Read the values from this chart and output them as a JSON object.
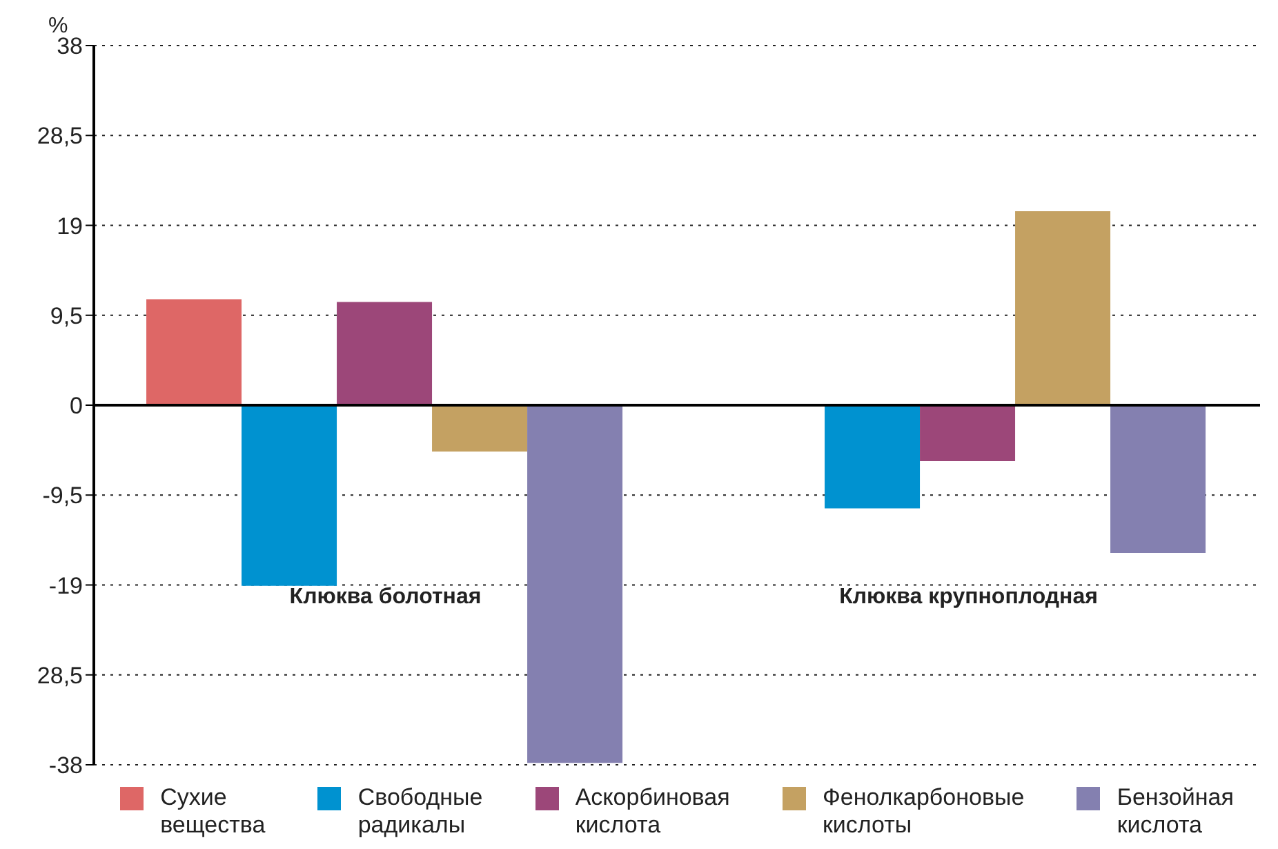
{
  "chart_data": {
    "type": "bar",
    "ylabel": "%",
    "categories": [
      "Клюква болотная",
      "Клюква крупноплодная"
    ],
    "series": [
      {
        "name": "Сухие вещества",
        "color": "#de6766",
        "values": [
          11.2,
          null
        ]
      },
      {
        "name": "Свободные радикалы",
        "color": "#0092d0",
        "values": [
          -19.1,
          -10.9
        ]
      },
      {
        "name": "Аскорбиновая кислота",
        "color": "#9c4779",
        "values": [
          10.9,
          -5.9
        ]
      },
      {
        "name": "Фенолкарбоновые кислоты",
        "color": "#c4a162",
        "values": [
          -4.9,
          20.5
        ]
      },
      {
        "name": "Бензойная кислота",
        "color": "#8480b0",
        "values": [
          -37.8,
          -15.6
        ]
      }
    ],
    "ylim": [
      -38,
      38
    ],
    "yticks": [
      38,
      {
        "value": 28.5,
        "label": "28,5"
      },
      19,
      {
        "value": 9.5,
        "label": "9,5"
      },
      0,
      {
        "value": -9.5,
        "label": "-9,5"
      },
      -19,
      {
        "value": -28.5,
        "label": "28,5"
      },
      -38
    ],
    "grid": "y",
    "legend": "bottom"
  }
}
